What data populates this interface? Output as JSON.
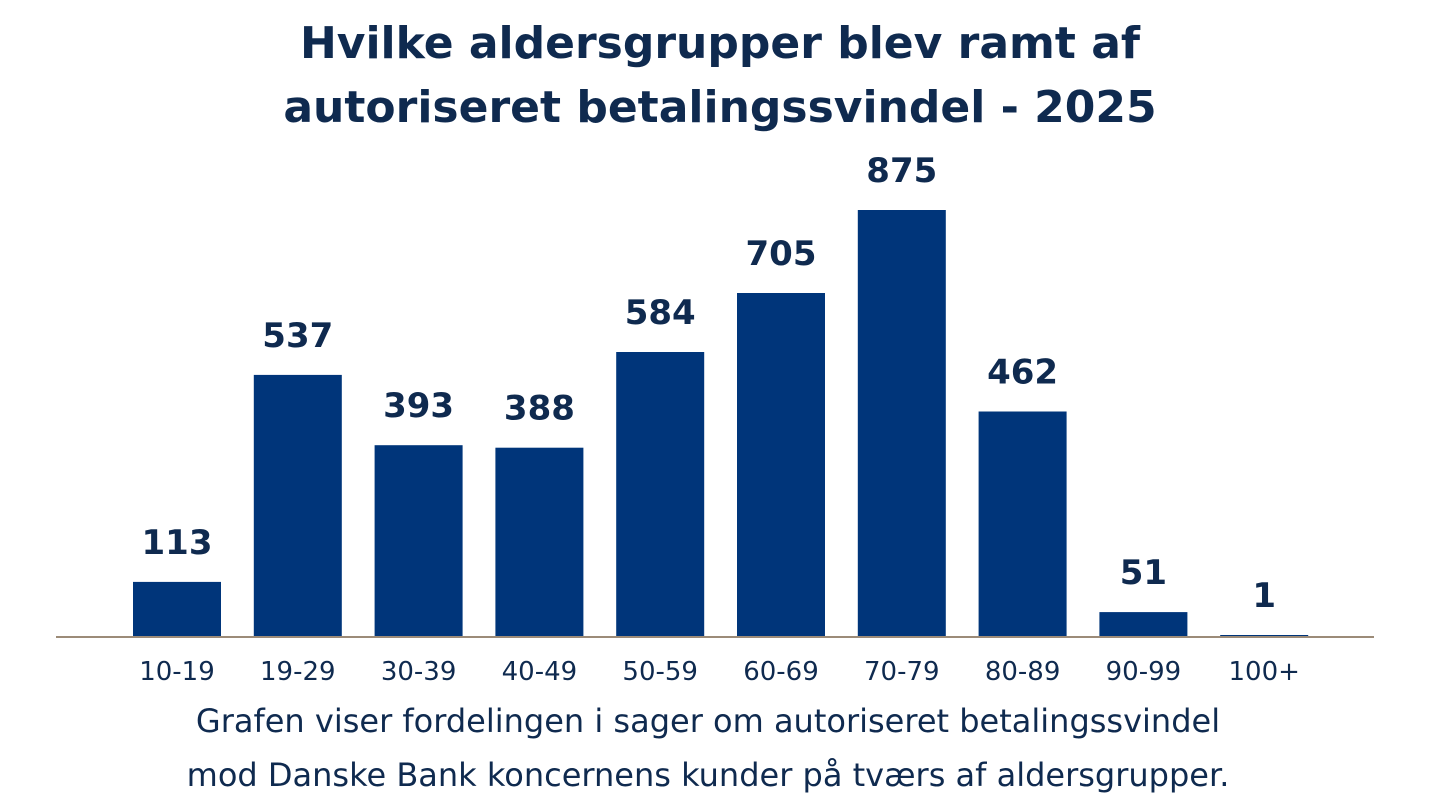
{
  "chart_data": {
    "type": "bar",
    "title": "Hvilke aldersgrupper blev ramt af autoriseret betalingssvindel - 2025",
    "title_lines": [
      "Hvilke aldersgrupper blev ramt af",
      "autoriseret betalingssvindel - 2025"
    ],
    "categories": [
      "10-19",
      "19-29",
      "30-39",
      "40-49",
      "50-59",
      "60-69",
      "70-79",
      "80-89",
      "90-99",
      "100+"
    ],
    "values": [
      113,
      537,
      393,
      388,
      584,
      705,
      875,
      462,
      51,
      1
    ],
    "xlabel": "",
    "ylabel": "",
    "ylim": [
      0,
      875
    ],
    "grid": false,
    "legend": "none",
    "caption_lines": [
      "Grafen viser fordelingen i sager om autoriseret betalingssvindel",
      "mod Danske Bank koncernens kunder på tværs af aldersgrupper."
    ]
  },
  "colors": {
    "bar": "#00357a",
    "text": "#0f2a4f",
    "baseline": "#9c8b78",
    "background": "#ffffff"
  }
}
